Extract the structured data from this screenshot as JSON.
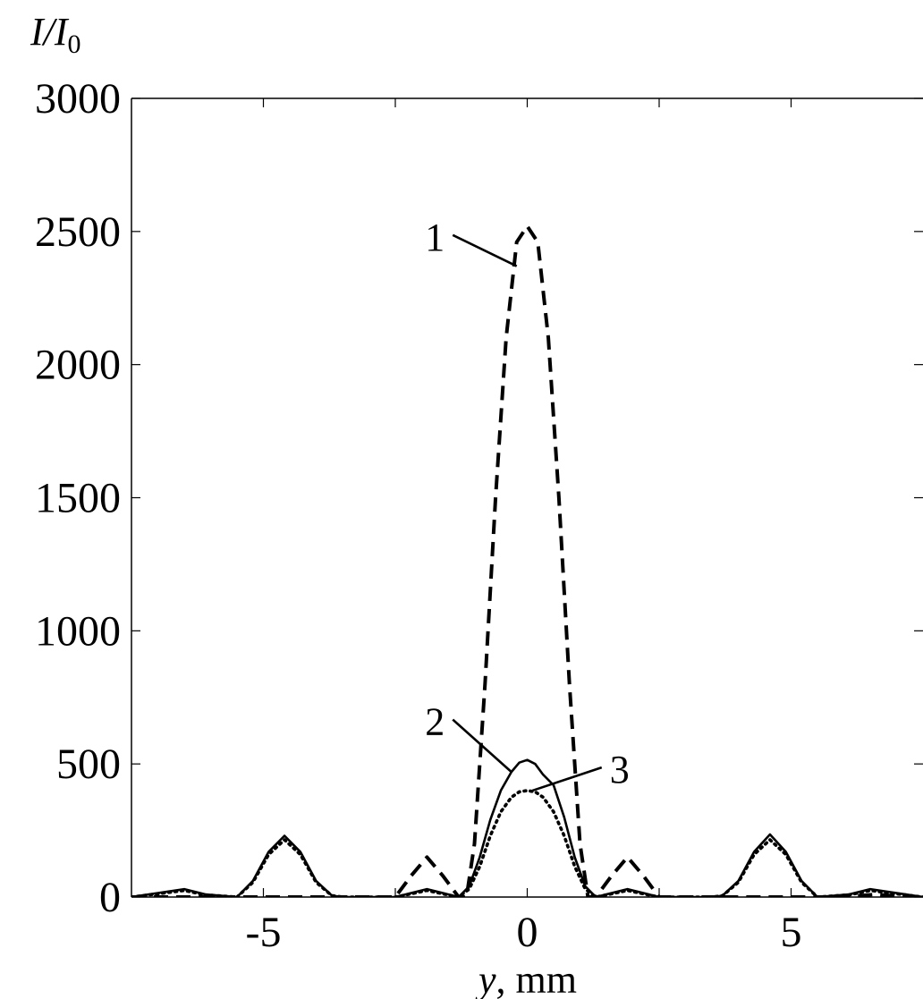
{
  "chart_data": {
    "type": "line",
    "title": "",
    "ylabel": "I/I0",
    "ylabel_parts": {
      "main": "I/I",
      "sub": "0"
    },
    "xlabel": "y, mm",
    "xlabel_parts": {
      "var": "y",
      "unit": ", mm"
    },
    "xlim": [
      -7.5,
      7.5
    ],
    "ylim": [
      0,
      3000
    ],
    "xticks": [
      -5,
      0,
      5
    ],
    "xtick_labels": [
      "-5",
      "0",
      "5"
    ],
    "yticks": [
      0,
      500,
      1000,
      1500,
      2000,
      2500,
      3000
    ],
    "ytick_labels": [
      "0",
      "500",
      "1000",
      "1500",
      "2000",
      "2500",
      "3000"
    ],
    "grid": false,
    "legend": "none",
    "series": [
      {
        "name": "1",
        "style": "dashed",
        "x": [
          -7.5,
          -3.0,
          -2.5,
          -2.2,
          -1.9,
          -1.6,
          -1.3,
          -1.15,
          -1.0,
          -0.8,
          -0.6,
          -0.4,
          -0.2,
          0.0,
          0.2,
          0.4,
          0.6,
          0.8,
          1.0,
          1.15,
          1.3,
          1.6,
          1.9,
          2.2,
          2.5,
          3.0,
          6.0,
          6.6,
          7.2,
          7.5
        ],
        "y": [
          0,
          0,
          0,
          80,
          150,
          80,
          0,
          0,
          200,
          800,
          1500,
          2100,
          2460,
          2520,
          2460,
          2100,
          1500,
          800,
          200,
          0,
          0,
          80,
          150,
          80,
          0,
          0,
          0,
          10,
          0,
          0
        ]
      },
      {
        "name": "2",
        "style": "solid",
        "x": [
          -7.5,
          -7.0,
          -6.5,
          -6.1,
          -5.5,
          -5.2,
          -4.9,
          -4.6,
          -4.3,
          -4.0,
          -3.7,
          -3.5,
          -2.5,
          -2.2,
          -1.9,
          -1.6,
          -1.3,
          -1.1,
          -0.9,
          -0.7,
          -0.5,
          -0.3,
          -0.15,
          0.0,
          0.15,
          0.3,
          0.5,
          0.7,
          0.9,
          1.1,
          1.3,
          1.6,
          1.9,
          2.2,
          2.5,
          3.5,
          3.7,
          4.0,
          4.3,
          4.6,
          4.9,
          5.2,
          5.5,
          6.1,
          6.5,
          7.0,
          7.5
        ],
        "y": [
          0,
          15,
          30,
          10,
          0,
          60,
          170,
          230,
          170,
          60,
          5,
          0,
          0,
          15,
          30,
          15,
          0,
          40,
          150,
          290,
          400,
          470,
          505,
          515,
          500,
          460,
          420,
          300,
          150,
          40,
          0,
          15,
          30,
          15,
          0,
          0,
          5,
          60,
          170,
          235,
          170,
          60,
          0,
          10,
          30,
          15,
          0
        ]
      },
      {
        "name": "3",
        "style": "dotted",
        "x": [
          -7.5,
          -7.0,
          -6.5,
          -6.1,
          -5.5,
          -5.2,
          -4.9,
          -4.6,
          -4.3,
          -4.0,
          -3.7,
          -3.5,
          -2.5,
          -2.2,
          -1.9,
          -1.6,
          -1.3,
          -1.1,
          -0.9,
          -0.7,
          -0.5,
          -0.3,
          -0.15,
          0.0,
          0.15,
          0.3,
          0.5,
          0.7,
          0.9,
          1.1,
          1.3,
          1.6,
          1.9,
          2.2,
          2.5,
          3.5,
          3.7,
          4.0,
          4.3,
          4.6,
          4.9,
          5.2,
          5.5,
          6.1,
          6.5,
          7.0,
          7.5
        ],
        "y": [
          0,
          12,
          25,
          8,
          0,
          55,
          160,
          215,
          160,
          55,
          5,
          0,
          0,
          12,
          25,
          12,
          0,
          30,
          115,
          230,
          320,
          375,
          395,
          400,
          395,
          375,
          320,
          230,
          115,
          30,
          0,
          12,
          25,
          12,
          0,
          0,
          5,
          55,
          160,
          215,
          160,
          55,
          0,
          8,
          25,
          12,
          0
        ]
      }
    ],
    "annotations": [
      {
        "text": "1",
        "series": "1",
        "target_x": -0.2,
        "target_y": 2370,
        "label_x": -1.75,
        "label_y": 2480
      },
      {
        "text": "2",
        "series": "2",
        "target_x": -0.3,
        "target_y": 470,
        "label_x": -1.75,
        "label_y": 660
      },
      {
        "text": "3",
        "series": "3",
        "target_x": 0.1,
        "target_y": 400,
        "label_x": 1.75,
        "label_y": 480
      }
    ]
  }
}
